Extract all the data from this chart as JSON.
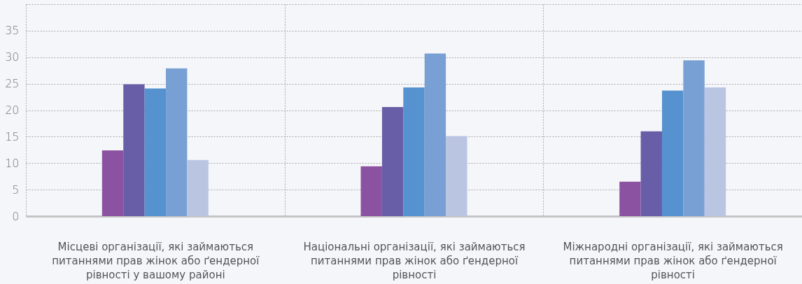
{
  "chart_data": {
    "type": "bar",
    "categories": [
      "Місцеві організації, які займаються питаннями прав жінок або ґендерної рівності у вашому районі",
      "Національні організації, які  займаються питаннями прав жінок або ґендерної рівності",
      "Міжнародні організації, які займаються питаннями прав жінок або ґендерної рівності"
    ],
    "series": [
      {
        "color": "#8b52a1",
        "values": [
          12.4,
          9.4,
          6.5
        ]
      },
      {
        "color": "#675ea7",
        "values": [
          24.9,
          20.6,
          16
        ]
      },
      {
        "color": "#5592cf",
        "values": [
          24.1,
          24.3,
          23.7
        ]
      },
      {
        "color": "#78a0d4",
        "values": [
          27.9,
          30.7,
          29.4
        ]
      },
      {
        "color": "#bac5e2",
        "values": [
          10.6,
          15.1,
          24.3
        ]
      }
    ],
    "ylim": [
      0,
      40
    ],
    "yticks": [
      0,
      5,
      10,
      15,
      20,
      25,
      30,
      35,
      {
        "value": 40,
        "label": null
      }
    ],
    "grid": true
  }
}
